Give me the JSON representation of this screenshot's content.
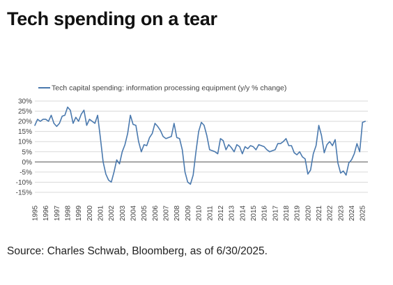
{
  "title": "Tech spending on a tear",
  "source": "Source: Charles Schwab, Bloomberg, as of 6/30/2025.",
  "chart_data": {
    "type": "line",
    "title": "",
    "xlabel": "",
    "ylabel": "",
    "legend_position": "top-left",
    "grid": "horizontal",
    "line_color": "#4A79AE",
    "zero_line_color": "#555555",
    "grid_color": "#D9D9D9",
    "xlim": [
      1995,
      2025.5
    ],
    "ylim": [
      -15,
      30
    ],
    "y_ticks": [
      30,
      25,
      20,
      15,
      10,
      5,
      0,
      -5,
      -10,
      -15
    ],
    "y_tick_labels": [
      "30%",
      "25%",
      "20%",
      "15%",
      "10%",
      "5%",
      "0%",
      "-5%",
      "-10%",
      "-15%"
    ],
    "x_ticks": [
      1995,
      1996,
      1997,
      1998,
      1999,
      2000,
      2001,
      2002,
      2003,
      2004,
      2005,
      2006,
      2007,
      2008,
      2009,
      2010,
      2011,
      2012,
      2013,
      2014,
      2015,
      2016,
      2017,
      2018,
      2019,
      2020,
      2021,
      2022,
      2023,
      2024,
      2025
    ],
    "x_tick_labels": [
      "1995",
      "1996",
      "1997",
      "1998",
      "1999",
      "2000",
      "2001",
      "2002",
      "2003",
      "2004",
      "2005",
      "2006",
      "2007",
      "2008",
      "2009",
      "2010",
      "2011",
      "2012",
      "2013",
      "2014",
      "2015",
      "2016",
      "2017",
      "2018",
      "2019",
      "2020",
      "2021",
      "2022",
      "2023",
      "2024",
      "2025"
    ],
    "series": [
      {
        "name": "Tech capital spending: information processing equipment (y/y % change)",
        "points": [
          [
            1995.0,
            18
          ],
          [
            1995.25,
            21
          ],
          [
            1995.5,
            20
          ],
          [
            1995.75,
            21
          ],
          [
            1996.0,
            21
          ],
          [
            1996.25,
            20
          ],
          [
            1996.5,
            23
          ],
          [
            1996.75,
            19
          ],
          [
            1997.0,
            17.5
          ],
          [
            1997.25,
            19
          ],
          [
            1997.5,
            22.5
          ],
          [
            1997.75,
            23
          ],
          [
            1998.0,
            27
          ],
          [
            1998.25,
            25.5
          ],
          [
            1998.5,
            19
          ],
          [
            1998.75,
            22
          ],
          [
            1999.0,
            20
          ],
          [
            1999.25,
            23.5
          ],
          [
            1999.5,
            25.5
          ],
          [
            1999.75,
            18
          ],
          [
            2000.0,
            21
          ],
          [
            2000.25,
            20
          ],
          [
            2000.5,
            19
          ],
          [
            2000.75,
            23
          ],
          [
            2001.0,
            12
          ],
          [
            2001.25,
            0
          ],
          [
            2001.5,
            -6
          ],
          [
            2001.75,
            -9
          ],
          [
            2002.0,
            -10
          ],
          [
            2002.25,
            -5
          ],
          [
            2002.5,
            1
          ],
          [
            2002.75,
            -1
          ],
          [
            2003.0,
            5
          ],
          [
            2003.25,
            8.5
          ],
          [
            2003.5,
            14
          ],
          [
            2003.75,
            23
          ],
          [
            2004.0,
            18.5
          ],
          [
            2004.25,
            18
          ],
          [
            2004.5,
            10
          ],
          [
            2004.75,
            5
          ],
          [
            2005.0,
            8.5
          ],
          [
            2005.25,
            8
          ],
          [
            2005.5,
            12
          ],
          [
            2005.75,
            14
          ],
          [
            2006.0,
            19
          ],
          [
            2006.25,
            17.5
          ],
          [
            2006.5,
            15.5
          ],
          [
            2006.75,
            12.5
          ],
          [
            2007.0,
            11.5
          ],
          [
            2007.25,
            12
          ],
          [
            2007.5,
            12.5
          ],
          [
            2007.75,
            19
          ],
          [
            2008.0,
            12
          ],
          [
            2008.25,
            11.5
          ],
          [
            2008.5,
            6
          ],
          [
            2008.75,
            -5
          ],
          [
            2009.0,
            -10
          ],
          [
            2009.25,
            -11
          ],
          [
            2009.5,
            -6.5
          ],
          [
            2009.75,
            5
          ],
          [
            2010.0,
            15
          ],
          [
            2010.25,
            19.5
          ],
          [
            2010.5,
            18
          ],
          [
            2010.75,
            13
          ],
          [
            2011.0,
            6
          ],
          [
            2011.25,
            5.5
          ],
          [
            2011.5,
            5
          ],
          [
            2011.75,
            4
          ],
          [
            2012.0,
            11.5
          ],
          [
            2012.25,
            10.5
          ],
          [
            2012.5,
            6
          ],
          [
            2012.75,
            8.5
          ],
          [
            2013.0,
            7
          ],
          [
            2013.25,
            5
          ],
          [
            2013.5,
            8.5
          ],
          [
            2013.75,
            7.5
          ],
          [
            2014.0,
            4
          ],
          [
            2014.25,
            7.5
          ],
          [
            2014.5,
            6.5
          ],
          [
            2014.75,
            8
          ],
          [
            2015.0,
            7.5
          ],
          [
            2015.25,
            6
          ],
          [
            2015.5,
            8.5
          ],
          [
            2015.75,
            8
          ],
          [
            2016.0,
            7.5
          ],
          [
            2016.25,
            6
          ],
          [
            2016.5,
            5
          ],
          [
            2016.75,
            5.5
          ],
          [
            2017.0,
            6
          ],
          [
            2017.25,
            9
          ],
          [
            2017.5,
            9
          ],
          [
            2017.75,
            10
          ],
          [
            2018.0,
            11.5
          ],
          [
            2018.25,
            8
          ],
          [
            2018.5,
            8
          ],
          [
            2018.75,
            4.5
          ],
          [
            2019.0,
            3.5
          ],
          [
            2019.25,
            5
          ],
          [
            2019.5,
            2.5
          ],
          [
            2019.75,
            1.5
          ],
          [
            2020.0,
            -6
          ],
          [
            2020.25,
            -4
          ],
          [
            2020.5,
            4
          ],
          [
            2020.75,
            8
          ],
          [
            2021.0,
            18
          ],
          [
            2021.25,
            13
          ],
          [
            2021.5,
            4.5
          ],
          [
            2021.75,
            8.5
          ],
          [
            2022.0,
            10
          ],
          [
            2022.25,
            8
          ],
          [
            2022.5,
            11
          ],
          [
            2022.75,
            -0.5
          ],
          [
            2023.0,
            -5.5
          ],
          [
            2023.25,
            -4.5
          ],
          [
            2023.5,
            -6.5
          ],
          [
            2023.75,
            -0.5
          ],
          [
            2024.0,
            1
          ],
          [
            2024.25,
            4
          ],
          [
            2024.5,
            9
          ],
          [
            2024.75,
            5
          ],
          [
            2025.0,
            19.5
          ],
          [
            2025.25,
            20
          ]
        ]
      }
    ]
  }
}
